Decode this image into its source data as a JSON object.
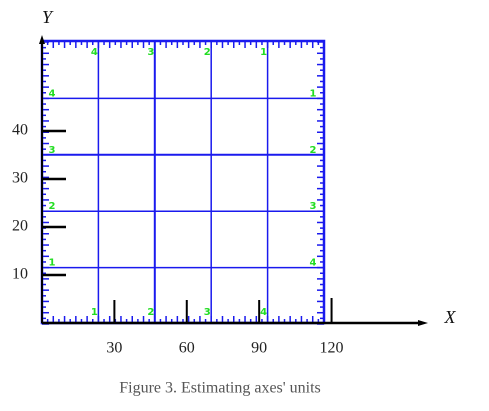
{
  "x_axis": {
    "label": "X",
    "ticks": [
      30,
      60,
      90,
      120
    ]
  },
  "y_axis": {
    "label": "Y",
    "ticks": [
      10,
      20,
      30,
      40
    ]
  },
  "box_labels": {
    "top": [
      "4",
      "3",
      "2",
      "1"
    ],
    "left": [
      "4",
      "3",
      "2",
      "1"
    ],
    "bottom": [
      "1",
      "2",
      "3",
      "4"
    ],
    "right": [
      "1",
      "2",
      "3",
      "4"
    ]
  },
  "caption": "Figure 3. Estimating axes' units"
}
